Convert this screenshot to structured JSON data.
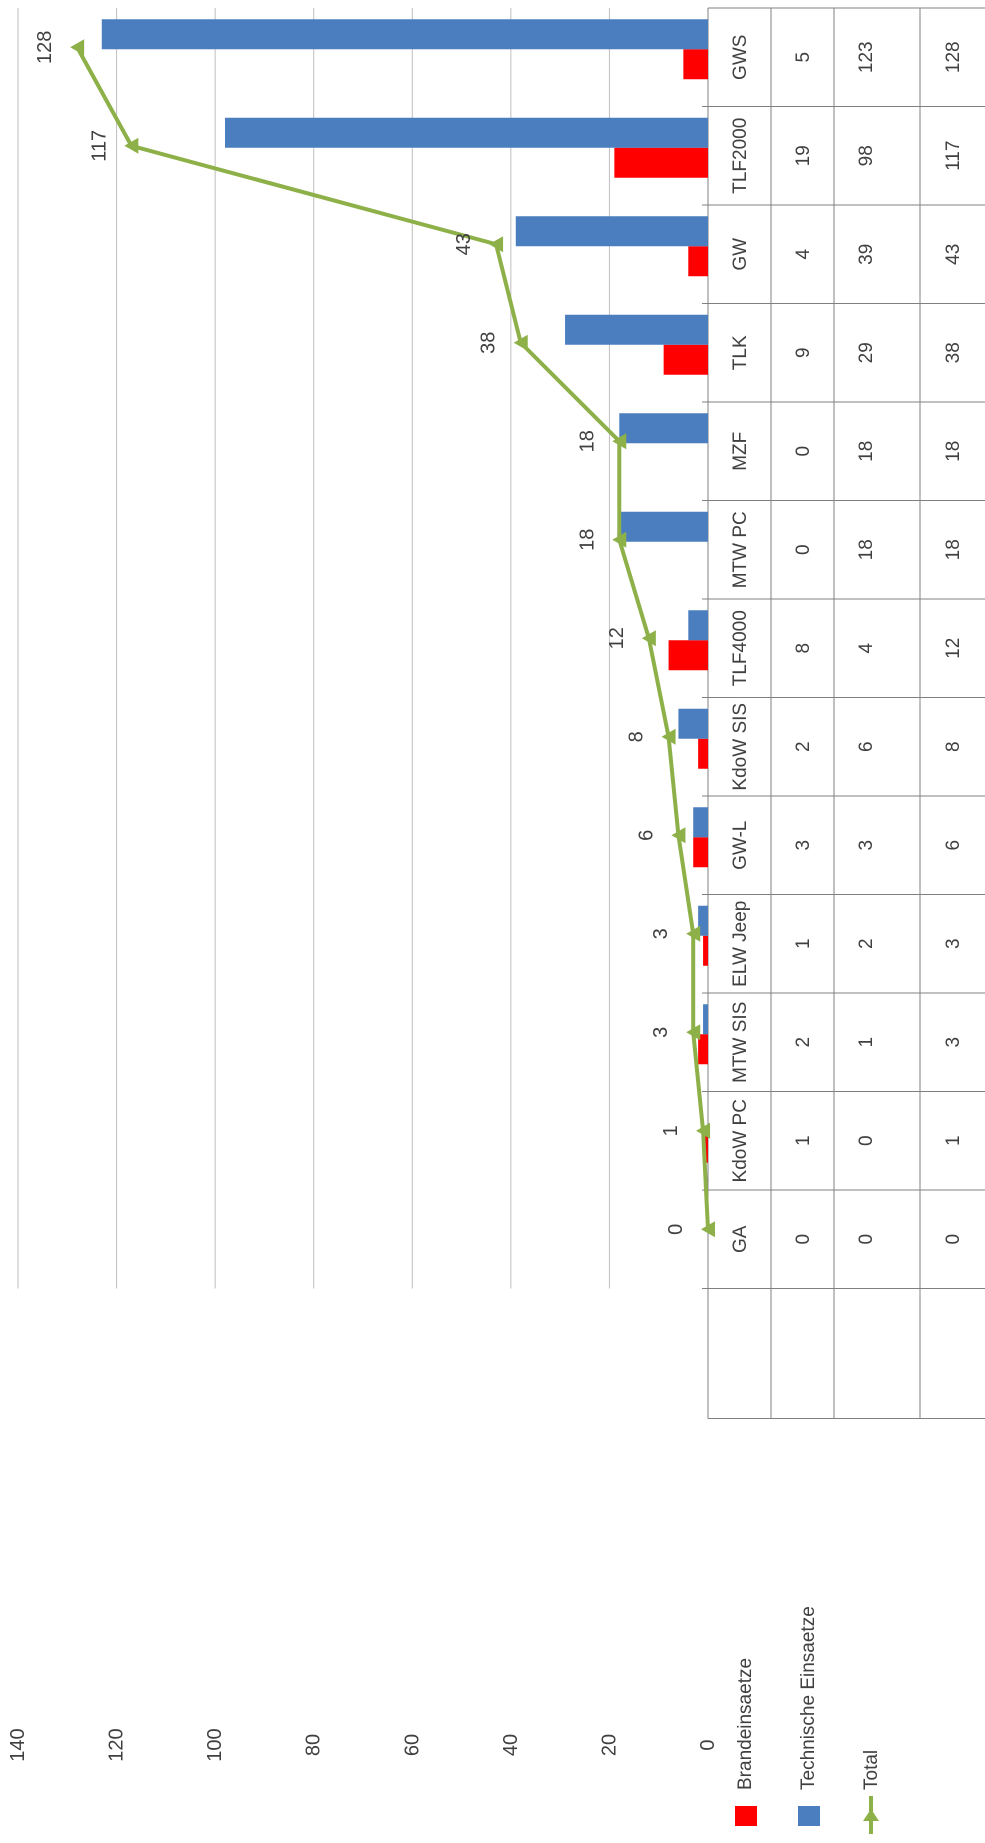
{
  "chart_data": {
    "type": "bar",
    "orientation": "rotated-90",
    "categories": [
      "GWS",
      "TLF2000",
      "GW",
      "TLK",
      "MZF",
      "MTW PC",
      "TLF4000",
      "KdoW SIS",
      "GW-L",
      "ELW Jeep",
      "MTW SIS",
      "KdoW PC",
      "GA"
    ],
    "series": [
      {
        "name": "Brandeinsaetze",
        "kind": "bar",
        "color": "#ff0000",
        "values": [
          5,
          19,
          4,
          9,
          0,
          0,
          8,
          2,
          3,
          1,
          2,
          1,
          0
        ]
      },
      {
        "name": "Technische Einsaetze",
        "kind": "bar",
        "color": "#4a7ebf",
        "values": [
          123,
          98,
          39,
          29,
          18,
          18,
          4,
          6,
          3,
          2,
          1,
          0,
          0
        ]
      },
      {
        "name": "Total",
        "kind": "line",
        "marker": "triangle",
        "color": "#8db048",
        "values": [
          128,
          117,
          43,
          38,
          18,
          18,
          12,
          8,
          6,
          3,
          3,
          1,
          0
        ]
      }
    ],
    "ylim": [
      0,
      140
    ],
    "yticks": [
      0,
      20,
      40,
      60,
      80,
      100,
      120,
      140
    ],
    "grid": true,
    "data_table": true,
    "legend": "data-table-left"
  }
}
